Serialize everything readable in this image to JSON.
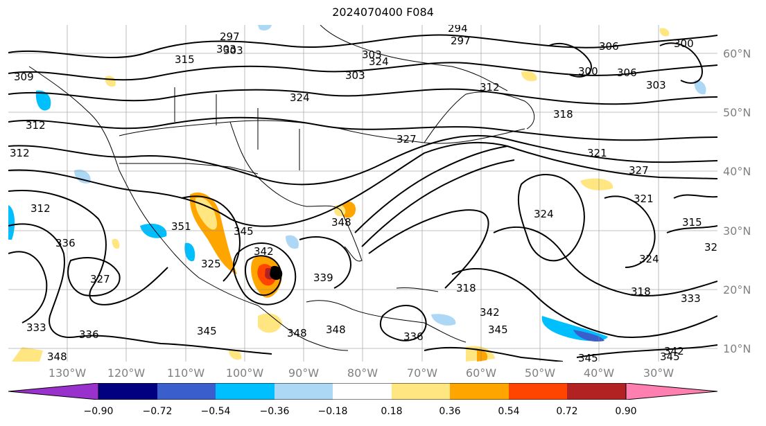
{
  "title": "2024070400 F084",
  "lat_labels": [
    "60°N",
    "50°N",
    "40°N",
    "30°N",
    "20°N",
    "10°N"
  ],
  "lon_labels": [
    "130°W",
    "120°W",
    "110°W",
    "100°W",
    "90°W",
    "80°W",
    "70°W",
    "60°W",
    "50°W",
    "40°W",
    "30°W"
  ],
  "colorbar": {
    "ticks": [
      "−0.90",
      "−0.72",
      "−0.54",
      "−0.36",
      "−0.18",
      "0.18",
      "0.36",
      "0.54",
      "0.72",
      "0.90"
    ],
    "colors": [
      "#9932cc",
      "#000080",
      "#3a5fcd",
      "#00bfff",
      "#add8f5",
      "#ffffff",
      "#ffe680",
      "#ffa500",
      "#ff4500",
      "#b22222",
      "#ff80b0"
    ]
  },
  "contour_labels": [
    "297",
    "303",
    "315",
    "309",
    "312",
    "312",
    "312",
    "336",
    "327",
    "333",
    "336",
    "348",
    "303",
    "324",
    "351",
    "325",
    "345",
    "342",
    "348",
    "339",
    "348",
    "348",
    "345",
    "336",
    "342",
    "345",
    "294",
    "297",
    "303",
    "303",
    "312",
    "318",
    "321",
    "327",
    "327",
    "321",
    "324",
    "318",
    "315",
    "324",
    "318",
    "333",
    "345",
    "342",
    "345",
    "306",
    "300",
    "306",
    "303",
    "300",
    "324",
    "32"
  ]
}
